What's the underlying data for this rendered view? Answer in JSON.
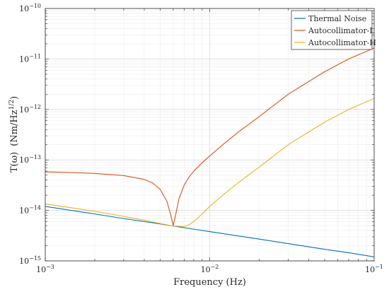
{
  "chart_data": {
    "type": "line",
    "title": "",
    "xlabel": "Frequency (Hz)",
    "ylabel_main": "T(ω)",
    "ylabel_unit": "(Nm/Hz",
    "ylabel_unit_exp": "1/2",
    "ylabel_unit_close": ")",
    "xscale": "log",
    "yscale": "log",
    "xlim": [
      0.001,
      0.1
    ],
    "ylim": [
      1e-15,
      1e-10
    ],
    "grid": true,
    "legend_position": "top-right",
    "x_ticks": [
      {
        "value": 0.001,
        "base": "10",
        "exp": "−3"
      },
      {
        "value": 0.01,
        "base": "10",
        "exp": "−2"
      },
      {
        "value": 0.1,
        "base": "10",
        "exp": "−1"
      }
    ],
    "y_ticks": [
      {
        "value": 1e-15,
        "base": "10",
        "exp": "−15"
      },
      {
        "value": 1e-14,
        "base": "10",
        "exp": "−14"
      },
      {
        "value": 1e-13,
        "base": "10",
        "exp": "−13"
      },
      {
        "value": 1e-12,
        "base": "10",
        "exp": "−12"
      },
      {
        "value": 1e-11,
        "base": "10",
        "exp": "−11"
      },
      {
        "value": 1e-10,
        "base": "10",
        "exp": "−10"
      }
    ],
    "series": [
      {
        "name": "Thermal Noise",
        "color": "#0072BD",
        "x": [
          0.001,
          0.002,
          0.003,
          0.005,
          0.006,
          0.008,
          0.01,
          0.02,
          0.03,
          0.05,
          0.07,
          0.1
        ],
        "y": [
          1.2e-14,
          8.5e-15,
          6.9e-15,
          5.4e-15,
          4.9e-15,
          4.25e-15,
          3.8e-15,
          2.7e-15,
          2.2e-15,
          1.7e-15,
          1.45e-15,
          1.2e-15
        ]
      },
      {
        "name": "Autocollimator-L",
        "color": "#D95319",
        "x": [
          0.001,
          0.0015,
          0.002,
          0.003,
          0.004,
          0.0045,
          0.005,
          0.0055,
          0.0058,
          0.006,
          0.0062,
          0.0065,
          0.007,
          0.0075,
          0.008,
          0.009,
          0.01,
          0.012,
          0.015,
          0.02,
          0.03,
          0.05,
          0.07,
          0.1
        ],
        "y": [
          5.8e-14,
          5.6e-14,
          5.4e-14,
          4.9e-14,
          4.1e-14,
          3.5e-14,
          2.6e-14,
          1.5e-14,
          8e-15,
          5e-15,
          8e-15,
          1.7e-14,
          3.2e-14,
          4.6e-14,
          6e-14,
          8.8e-14,
          1.2e-13,
          2e-13,
          3.6e-13,
          7.2e-13,
          2e-12,
          5.6e-12,
          1e-11,
          1.65e-11
        ]
      },
      {
        "name": "Autocollimator-H",
        "color": "#EDB120",
        "x": [
          0.001,
          0.002,
          0.003,
          0.004,
          0.005,
          0.006,
          0.007,
          0.0075,
          0.008,
          0.009,
          0.01,
          0.012,
          0.015,
          0.02,
          0.03,
          0.05,
          0.07,
          0.1
        ],
        "y": [
          1.35e-14,
          9.6e-15,
          7.6e-15,
          6.4e-15,
          5.5e-15,
          4.9e-15,
          4.8e-15,
          5.2e-15,
          6e-15,
          8.5e-15,
          1.2e-14,
          2e-14,
          3.6e-14,
          7.2e-14,
          2e-13,
          5.6e-13,
          1e-12,
          1.65e-12
        ]
      }
    ]
  }
}
